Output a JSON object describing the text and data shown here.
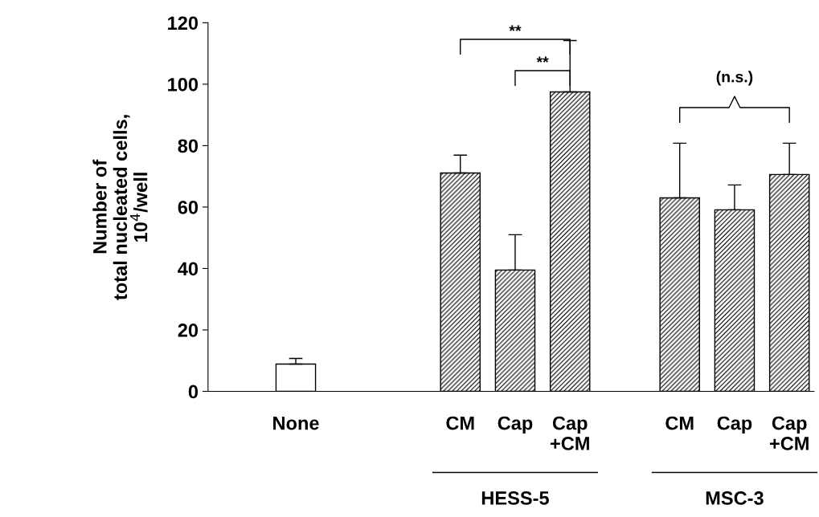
{
  "chart_data": {
    "type": "bar",
    "ylabel": "Number of\ntotal nucleated cells,\n10$^{4}$/well",
    "categories": [
      "None",
      null,
      null,
      "CM",
      "Cap",
      "Cap\n+CM",
      null,
      "CM",
      "Cap",
      "Cap\n+CM"
    ],
    "series": [
      {
        "color": "#000000",
        "values": [
          8.9,
          null,
          null,
          null,
          null,
          null,
          null,
          null,
          null,
          null
        ],
        "errors": [
          [
            8.9,
            10.7
          ],
          null,
          null,
          null,
          null,
          null,
          null,
          null,
          null,
          null
        ]
      },
      {
        "color": "#000000",
        "values": [
          null,
          null,
          null,
          71.1,
          39.5,
          97.5,
          null,
          63,
          59.1,
          70.6
        ],
        "errors": [
          null,
          null,
          null,
          [
            71.1,
            76.9
          ],
          [
            39.5,
            51
          ],
          [
            97.5,
            114.2
          ],
          null,
          [
            63,
            80.8
          ],
          [
            59.1,
            67.2
          ],
          [
            70.6,
            80.8
          ]
        ]
      }
    ],
    "ylim": [
      0,
      120
    ],
    "yticks": [
      0,
      20,
      40,
      60,
      80,
      100,
      120
    ],
    "grid": false,
    "legend": false,
    "annotations": [
      "**",
      "**",
      "(n.s.)",
      "HESS-5",
      "MSC-3"
    ]
  }
}
